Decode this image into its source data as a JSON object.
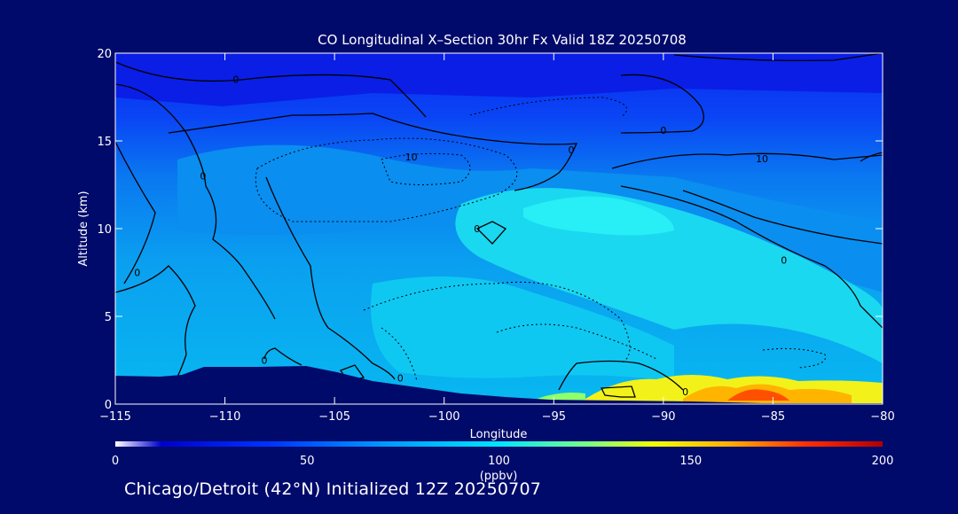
{
  "chart_data": {
    "type": "heatmap",
    "title": "CO Longitudinal X–Section 30hr  Fx Valid 18Z 20250708",
    "xlabel": "Longitude",
    "ylabel": "Altitude (km)",
    "xlim": [
      -115,
      -80
    ],
    "ylim": [
      0,
      20
    ],
    "x_ticks": [
      -115,
      -110,
      -105,
      -100,
      -95,
      -90,
      -85,
      -80
    ],
    "x_tick_labels": [
      "−115",
      "−110",
      "−105",
      "−100",
      "−95",
      "−90",
      "−85",
      "−80"
    ],
    "y_ticks": [
      0,
      5,
      10,
      15,
      20
    ],
    "y_tick_labels": [
      "0",
      "5",
      "10",
      "15",
      "20"
    ],
    "colorbar": {
      "label": "(ppbv)",
      "range": [
        0,
        200
      ],
      "ticks": [
        0,
        50,
        100,
        150,
        200
      ],
      "tick_labels": [
        "0",
        "50",
        "100",
        "150",
        "200"
      ]
    },
    "contour_labels": [
      {
        "text": "0",
        "lon": -109.5,
        "alt": 18.5
      },
      {
        "text": "0",
        "lon": -111.0,
        "alt": 13.0
      },
      {
        "text": "0",
        "lon": -114.0,
        "alt": 7.5
      },
      {
        "text": "10",
        "lon": -101.5,
        "alt": 14.1
      },
      {
        "text": "0",
        "lon": -98.5,
        "alt": 10.0
      },
      {
        "text": "0",
        "lon": -94.2,
        "alt": 14.5
      },
      {
        "text": "0",
        "lon": -90.0,
        "alt": 15.6
      },
      {
        "text": "10",
        "lon": -85.5,
        "alt": 14.0
      },
      {
        "text": "0",
        "lon": -84.5,
        "alt": 8.2
      },
      {
        "text": "0",
        "lon": -108.2,
        "alt": 2.5
      },
      {
        "text": "0",
        "lon": -102.0,
        "alt": 1.5
      },
      {
        "text": "0",
        "lon": -89.0,
        "alt": 0.7
      }
    ]
  },
  "colors": {
    "background": "#000a6b",
    "text": "#ffffff",
    "terrain": "#000a6b",
    "contour": "#000000"
  },
  "footer": "Chicago/Detroit (42°N) Initialized 12Z 20250707"
}
